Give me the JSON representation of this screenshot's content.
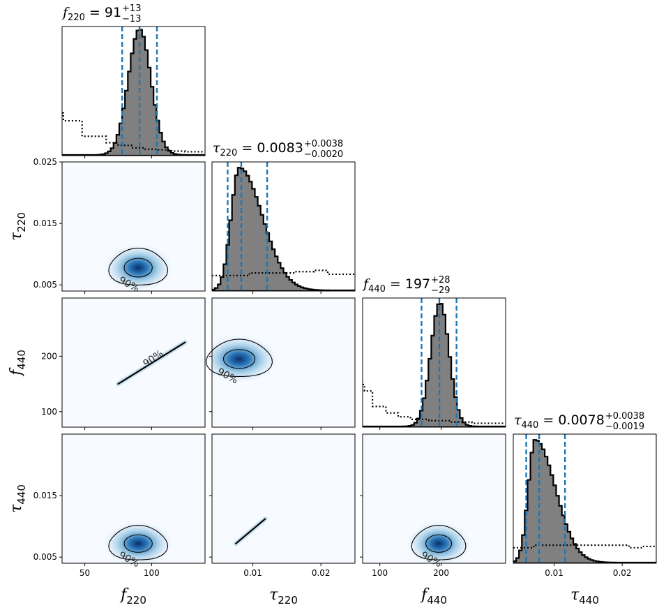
{
  "chart_data": {
    "type": "corner",
    "parameters": [
      {
        "symbol": "f",
        "subscript": "220",
        "range": [
          33,
          140
        ],
        "ticks": [
          {
            "v": 50,
            "label": "50"
          },
          {
            "v": 100,
            "label": "100"
          }
        ],
        "median": 91,
        "plus": "+13",
        "minus": "−13",
        "median_label": "91",
        "quantiles": [
          78,
          91,
          104
        ]
      },
      {
        "symbol": "τ",
        "subscript": "220",
        "range": [
          0.004,
          0.025
        ],
        "ticks": [
          {
            "v": 0.01,
            "label": "0.01"
          },
          {
            "v": 0.02,
            "label": "0.02"
          }
        ],
        "yticks": [
          {
            "v": 0.025,
            "label": "0.025"
          },
          {
            "v": 0.015,
            "label": "0.015"
          },
          {
            "v": 0.005,
            "label": "0.005"
          }
        ],
        "median": 0.0083,
        "plus": "+0.0038",
        "minus": "−0.0020",
        "median_label": "0.0083",
        "quantiles": [
          0.0063,
          0.0083,
          0.0121
        ]
      },
      {
        "symbol": "f",
        "subscript": "440",
        "range": [
          72,
          305
        ],
        "ticks": [
          {
            "v": 100,
            "label": "100"
          },
          {
            "v": 200,
            "label": "200"
          }
        ],
        "yticks": [
          {
            "v": 200,
            "label": "200"
          },
          {
            "v": 100,
            "label": "100"
          }
        ],
        "median": 197,
        "plus": "+28",
        "minus": "−29",
        "median_label": "197",
        "quantiles": [
          168,
          197,
          225
        ]
      },
      {
        "symbol": "τ",
        "subscript": "440",
        "range": [
          0.004,
          0.025
        ],
        "ticks": [
          {
            "v": 0.01,
            "label": "0.01"
          },
          {
            "v": 0.02,
            "label": "0.02"
          }
        ],
        "yticks": [
          {
            "v": 0.015,
            "label": "0.015"
          },
          {
            "v": 0.005,
            "label": "0.005"
          }
        ],
        "median": 0.0078,
        "plus": "+0.0038",
        "minus": "−0.0019",
        "median_label": "0.0078",
        "quantiles": [
          0.0059,
          0.0078,
          0.0116
        ]
      }
    ],
    "marginals": [
      {
        "param": 0,
        "gauss": {
          "mu": 91,
          "sigma": 8.5,
          "skew": 0
        },
        "peak": 0.97,
        "prior_steps": [
          [
            33,
            0.33
          ],
          [
            34,
            0.27
          ],
          [
            48,
            0.15
          ],
          [
            66,
            0.1
          ],
          [
            75,
            0.08
          ],
          [
            85,
            0.06
          ],
          [
            95,
            0.05
          ],
          [
            105,
            0.045
          ],
          [
            115,
            0.035
          ],
          [
            125,
            0.03
          ],
          [
            140,
            0.03
          ]
        ]
      },
      {
        "param": 1,
        "gauss": {
          "mu": 0.008,
          "sigma": 0.0012,
          "skew": 0.0022
        },
        "peak": 0.95,
        "prior_steps": [
          [
            0.004,
            0.12
          ],
          [
            0.0095,
            0.14
          ],
          [
            0.016,
            0.15
          ],
          [
            0.019,
            0.16
          ],
          [
            0.021,
            0.13
          ],
          [
            0.025,
            0.12
          ]
        ]
      },
      {
        "param": 2,
        "gauss": {
          "mu": 198,
          "sigma": 15,
          "skew": 0
        },
        "peak": 0.95,
        "prior_steps": [
          [
            72,
            0.33
          ],
          [
            75,
            0.28
          ],
          [
            88,
            0.16
          ],
          [
            110,
            0.11
          ],
          [
            130,
            0.08
          ],
          [
            150,
            0.06
          ],
          [
            180,
            0.05
          ],
          [
            215,
            0.04
          ],
          [
            250,
            0.03
          ],
          [
            305,
            0.025
          ]
        ]
      },
      {
        "param": 3,
        "gauss": {
          "mu": 0.0072,
          "sigma": 0.001,
          "skew": 0.002
        },
        "peak": 0.95,
        "prior_steps": [
          [
            0.004,
            0.12
          ],
          [
            0.007,
            0.14
          ],
          [
            0.012,
            0.14
          ],
          [
            0.016,
            0.14
          ],
          [
            0.021,
            0.12
          ],
          [
            0.023,
            0.13
          ],
          [
            0.025,
            0.14
          ]
        ]
      }
    ],
    "joints": [
      {
        "x": 0,
        "y": 1,
        "type": "blob",
        "center": [
          90,
          0.0078
        ],
        "spread": [
          10,
          0.0016
        ],
        "contour_label": "90%"
      },
      {
        "x": 0,
        "y": 2,
        "type": "line",
        "from": [
          75,
          150
        ],
        "to": [
          125,
          225
        ],
        "contour_label": "90%"
      },
      {
        "x": 1,
        "y": 2,
        "type": "blob",
        "center": [
          0.008,
          195
        ],
        "spread": [
          0.0022,
          18
        ],
        "contour_label": "90%"
      },
      {
        "x": 0,
        "y": 3,
        "type": "blob",
        "center": [
          90,
          0.0072
        ],
        "spread": [
          10,
          0.0015
        ],
        "contour_label": "90%"
      },
      {
        "x": 1,
        "y": 3,
        "type": "line",
        "from": [
          0.0075,
          0.0072
        ],
        "to": [
          0.0118,
          0.0112
        ],
        "contour_label": ""
      },
      {
        "x": 2,
        "y": 3,
        "type": "blob",
        "center": [
          196,
          0.0072
        ],
        "spread": [
          20,
          0.0015
        ],
        "contour_label": "90%"
      }
    ],
    "colors": {
      "hist_fill": "#808080",
      "hist_edge": "#000000",
      "quantile": "#1f77b4",
      "density_dark": "#08306b",
      "density_light": "#f7fbff",
      "prior": "#000000"
    }
  }
}
